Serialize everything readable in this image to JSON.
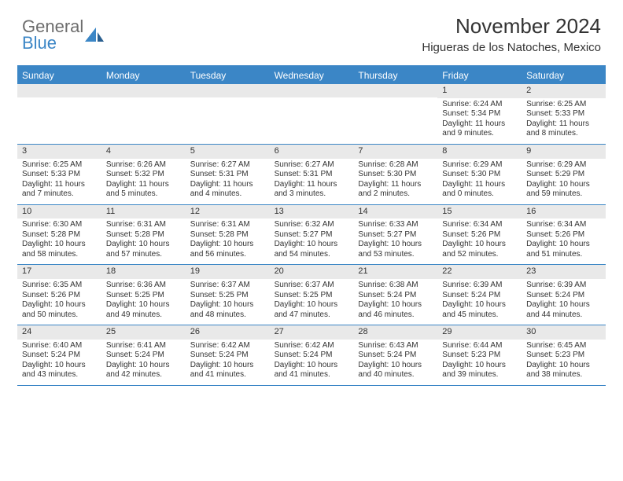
{
  "logo": {
    "line1": "General",
    "line2": "Blue"
  },
  "title": "November 2024",
  "location": "Higueras de los Natoches, Mexico",
  "colors": {
    "header_bg": "#3b86c6",
    "header_text": "#ffffff",
    "daynum_bg": "#e9e9e9",
    "border": "#3b86c6",
    "logo_gray": "#6d6d6d",
    "logo_blue": "#3b86c6",
    "text": "#333333"
  },
  "daysOfWeek": [
    "Sunday",
    "Monday",
    "Tuesday",
    "Wednesday",
    "Thursday",
    "Friday",
    "Saturday"
  ],
  "weeks": [
    [
      {
        "n": "",
        "sunrise": "",
        "sunset": "",
        "daylight1": "",
        "daylight2": ""
      },
      {
        "n": "",
        "sunrise": "",
        "sunset": "",
        "daylight1": "",
        "daylight2": ""
      },
      {
        "n": "",
        "sunrise": "",
        "sunset": "",
        "daylight1": "",
        "daylight2": ""
      },
      {
        "n": "",
        "sunrise": "",
        "sunset": "",
        "daylight1": "",
        "daylight2": ""
      },
      {
        "n": "",
        "sunrise": "",
        "sunset": "",
        "daylight1": "",
        "daylight2": ""
      },
      {
        "n": "1",
        "sunrise": "Sunrise: 6:24 AM",
        "sunset": "Sunset: 5:34 PM",
        "daylight1": "Daylight: 11 hours",
        "daylight2": "and 9 minutes."
      },
      {
        "n": "2",
        "sunrise": "Sunrise: 6:25 AM",
        "sunset": "Sunset: 5:33 PM",
        "daylight1": "Daylight: 11 hours",
        "daylight2": "and 8 minutes."
      }
    ],
    [
      {
        "n": "3",
        "sunrise": "Sunrise: 6:25 AM",
        "sunset": "Sunset: 5:33 PM",
        "daylight1": "Daylight: 11 hours",
        "daylight2": "and 7 minutes."
      },
      {
        "n": "4",
        "sunrise": "Sunrise: 6:26 AM",
        "sunset": "Sunset: 5:32 PM",
        "daylight1": "Daylight: 11 hours",
        "daylight2": "and 5 minutes."
      },
      {
        "n": "5",
        "sunrise": "Sunrise: 6:27 AM",
        "sunset": "Sunset: 5:31 PM",
        "daylight1": "Daylight: 11 hours",
        "daylight2": "and 4 minutes."
      },
      {
        "n": "6",
        "sunrise": "Sunrise: 6:27 AM",
        "sunset": "Sunset: 5:31 PM",
        "daylight1": "Daylight: 11 hours",
        "daylight2": "and 3 minutes."
      },
      {
        "n": "7",
        "sunrise": "Sunrise: 6:28 AM",
        "sunset": "Sunset: 5:30 PM",
        "daylight1": "Daylight: 11 hours",
        "daylight2": "and 2 minutes."
      },
      {
        "n": "8",
        "sunrise": "Sunrise: 6:29 AM",
        "sunset": "Sunset: 5:30 PM",
        "daylight1": "Daylight: 11 hours",
        "daylight2": "and 0 minutes."
      },
      {
        "n": "9",
        "sunrise": "Sunrise: 6:29 AM",
        "sunset": "Sunset: 5:29 PM",
        "daylight1": "Daylight: 10 hours",
        "daylight2": "and 59 minutes."
      }
    ],
    [
      {
        "n": "10",
        "sunrise": "Sunrise: 6:30 AM",
        "sunset": "Sunset: 5:28 PM",
        "daylight1": "Daylight: 10 hours",
        "daylight2": "and 58 minutes."
      },
      {
        "n": "11",
        "sunrise": "Sunrise: 6:31 AM",
        "sunset": "Sunset: 5:28 PM",
        "daylight1": "Daylight: 10 hours",
        "daylight2": "and 57 minutes."
      },
      {
        "n": "12",
        "sunrise": "Sunrise: 6:31 AM",
        "sunset": "Sunset: 5:28 PM",
        "daylight1": "Daylight: 10 hours",
        "daylight2": "and 56 minutes."
      },
      {
        "n": "13",
        "sunrise": "Sunrise: 6:32 AM",
        "sunset": "Sunset: 5:27 PM",
        "daylight1": "Daylight: 10 hours",
        "daylight2": "and 54 minutes."
      },
      {
        "n": "14",
        "sunrise": "Sunrise: 6:33 AM",
        "sunset": "Sunset: 5:27 PM",
        "daylight1": "Daylight: 10 hours",
        "daylight2": "and 53 minutes."
      },
      {
        "n": "15",
        "sunrise": "Sunrise: 6:34 AM",
        "sunset": "Sunset: 5:26 PM",
        "daylight1": "Daylight: 10 hours",
        "daylight2": "and 52 minutes."
      },
      {
        "n": "16",
        "sunrise": "Sunrise: 6:34 AM",
        "sunset": "Sunset: 5:26 PM",
        "daylight1": "Daylight: 10 hours",
        "daylight2": "and 51 minutes."
      }
    ],
    [
      {
        "n": "17",
        "sunrise": "Sunrise: 6:35 AM",
        "sunset": "Sunset: 5:26 PM",
        "daylight1": "Daylight: 10 hours",
        "daylight2": "and 50 minutes."
      },
      {
        "n": "18",
        "sunrise": "Sunrise: 6:36 AM",
        "sunset": "Sunset: 5:25 PM",
        "daylight1": "Daylight: 10 hours",
        "daylight2": "and 49 minutes."
      },
      {
        "n": "19",
        "sunrise": "Sunrise: 6:37 AM",
        "sunset": "Sunset: 5:25 PM",
        "daylight1": "Daylight: 10 hours",
        "daylight2": "and 48 minutes."
      },
      {
        "n": "20",
        "sunrise": "Sunrise: 6:37 AM",
        "sunset": "Sunset: 5:25 PM",
        "daylight1": "Daylight: 10 hours",
        "daylight2": "and 47 minutes."
      },
      {
        "n": "21",
        "sunrise": "Sunrise: 6:38 AM",
        "sunset": "Sunset: 5:24 PM",
        "daylight1": "Daylight: 10 hours",
        "daylight2": "and 46 minutes."
      },
      {
        "n": "22",
        "sunrise": "Sunrise: 6:39 AM",
        "sunset": "Sunset: 5:24 PM",
        "daylight1": "Daylight: 10 hours",
        "daylight2": "and 45 minutes."
      },
      {
        "n": "23",
        "sunrise": "Sunrise: 6:39 AM",
        "sunset": "Sunset: 5:24 PM",
        "daylight1": "Daylight: 10 hours",
        "daylight2": "and 44 minutes."
      }
    ],
    [
      {
        "n": "24",
        "sunrise": "Sunrise: 6:40 AM",
        "sunset": "Sunset: 5:24 PM",
        "daylight1": "Daylight: 10 hours",
        "daylight2": "and 43 minutes."
      },
      {
        "n": "25",
        "sunrise": "Sunrise: 6:41 AM",
        "sunset": "Sunset: 5:24 PM",
        "daylight1": "Daylight: 10 hours",
        "daylight2": "and 42 minutes."
      },
      {
        "n": "26",
        "sunrise": "Sunrise: 6:42 AM",
        "sunset": "Sunset: 5:24 PM",
        "daylight1": "Daylight: 10 hours",
        "daylight2": "and 41 minutes."
      },
      {
        "n": "27",
        "sunrise": "Sunrise: 6:42 AM",
        "sunset": "Sunset: 5:24 PM",
        "daylight1": "Daylight: 10 hours",
        "daylight2": "and 41 minutes."
      },
      {
        "n": "28",
        "sunrise": "Sunrise: 6:43 AM",
        "sunset": "Sunset: 5:24 PM",
        "daylight1": "Daylight: 10 hours",
        "daylight2": "and 40 minutes."
      },
      {
        "n": "29",
        "sunrise": "Sunrise: 6:44 AM",
        "sunset": "Sunset: 5:23 PM",
        "daylight1": "Daylight: 10 hours",
        "daylight2": "and 39 minutes."
      },
      {
        "n": "30",
        "sunrise": "Sunrise: 6:45 AM",
        "sunset": "Sunset: 5:23 PM",
        "daylight1": "Daylight: 10 hours",
        "daylight2": "and 38 minutes."
      }
    ]
  ]
}
